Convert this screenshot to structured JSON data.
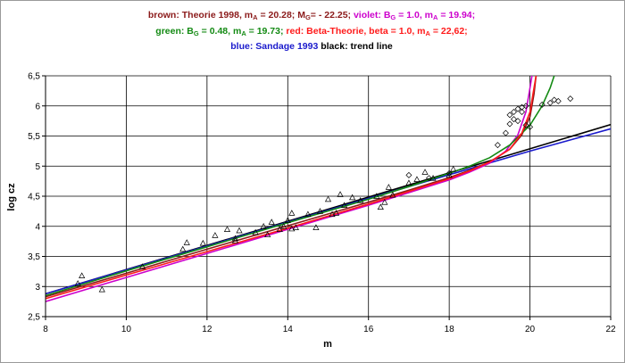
{
  "legend": {
    "brown_prefix": "brown",
    "brown_text": ": Theorie 1998, m",
    "brown_sub1": "A",
    "brown_mid": " = 20.28; M",
    "brown_sub2": "G",
    "brown_end": "= - 22.25;",
    "violet_prefix": "violet",
    "violet_text": ": B",
    "violet_sub1": "G",
    "violet_mid": " = 1.0, m",
    "violet_sub2": "A",
    "violet_end": " = 19.94;",
    "green_prefix": "green",
    "green_text": ": B",
    "green_sub1": "G",
    "green_mid": " = 0.48, m",
    "green_sub2": "A",
    "green_end": " = 19.73;",
    "red_prefix": "red",
    "red_text": ": Beta-Theorie, beta = 1.0, m",
    "red_sub": "A",
    "red_end": " = 22,62;",
    "blue_prefix": "blue",
    "blue_text": ": Sandage 1993",
    "black_prefix": "black",
    "black_text": ": trend line"
  },
  "colors": {
    "brown": "#8b1a1a",
    "violet": "#cc00cc",
    "green": "#138a13",
    "red": "#ff1a1a",
    "blue": "#1a1acc",
    "black": "#000000"
  },
  "chart_data": {
    "type": "scatter",
    "xlabel": "m",
    "ylabel": "log cz",
    "xlim": [
      8,
      22
    ],
    "ylim": [
      2.5,
      6.5
    ],
    "x_ticks": [
      8,
      10,
      12,
      14,
      16,
      18,
      20,
      22
    ],
    "y_ticks": [
      2.5,
      3,
      3.5,
      4,
      4.5,
      5,
      5.5,
      6,
      6.5
    ],
    "x_tick_labels": [
      "8",
      "10",
      "12",
      "14",
      "16",
      "18",
      "20",
      "22"
    ],
    "y_tick_labels": [
      "2,5",
      "3",
      "3,5",
      "4",
      "4,5",
      "5",
      "5,5",
      "6",
      "6,5"
    ],
    "grid": true,
    "series": [
      {
        "name": "black",
        "style": "line",
        "color": "black",
        "points": [
          [
            8,
            2.88
          ],
          [
            22,
            5.69
          ]
        ]
      },
      {
        "name": "blue",
        "style": "line",
        "color": "blue",
        "points": [
          [
            8,
            2.88
          ],
          [
            14,
            4.07
          ],
          [
            17,
            4.66
          ],
          [
            20,
            5.25
          ],
          [
            22,
            5.62
          ]
        ]
      },
      {
        "name": "brown",
        "style": "line",
        "color": "brown",
        "points": [
          [
            8,
            2.83
          ],
          [
            10,
            3.22
          ],
          [
            12,
            3.62
          ],
          [
            14,
            4.01
          ],
          [
            16,
            4.4
          ],
          [
            17,
            4.6
          ],
          [
            18,
            4.81
          ],
          [
            18.5,
            4.93
          ],
          [
            19,
            5.07
          ],
          [
            19.5,
            5.28
          ],
          [
            19.8,
            5.52
          ],
          [
            20.0,
            5.82
          ],
          [
            20.1,
            6.2
          ],
          [
            20.15,
            6.5
          ]
        ]
      },
      {
        "name": "violet",
        "style": "line",
        "color": "violet",
        "points": [
          [
            8,
            2.75
          ],
          [
            10,
            3.15
          ],
          [
            12,
            3.55
          ],
          [
            14,
            3.95
          ],
          [
            16,
            4.35
          ],
          [
            17,
            4.56
          ],
          [
            18,
            4.77
          ],
          [
            18.5,
            4.9
          ],
          [
            19,
            5.05
          ],
          [
            19.4,
            5.25
          ],
          [
            19.7,
            5.52
          ],
          [
            19.9,
            5.9
          ],
          [
            20.0,
            6.3
          ],
          [
            20.05,
            6.5
          ]
        ]
      },
      {
        "name": "green",
        "style": "line",
        "color": "green",
        "points": [
          [
            8,
            2.85
          ],
          [
            10,
            3.26
          ],
          [
            12,
            3.66
          ],
          [
            14,
            4.06
          ],
          [
            16,
            4.45
          ],
          [
            17,
            4.66
          ],
          [
            18,
            4.88
          ],
          [
            18.5,
            5.0
          ],
          [
            19,
            5.14
          ],
          [
            19.5,
            5.35
          ],
          [
            20,
            5.68
          ],
          [
            20.3,
            6.0
          ],
          [
            20.5,
            6.3
          ],
          [
            20.6,
            6.5
          ]
        ]
      },
      {
        "name": "red",
        "style": "line",
        "color": "red",
        "points": [
          [
            8,
            2.8
          ],
          [
            10,
            3.19
          ],
          [
            12,
            3.58
          ],
          [
            14,
            3.97
          ],
          [
            16,
            4.37
          ],
          [
            17,
            4.58
          ],
          [
            18,
            4.79
          ],
          [
            18.5,
            4.92
          ],
          [
            19,
            5.07
          ],
          [
            19.5,
            5.28
          ],
          [
            19.8,
            5.55
          ],
          [
            20.0,
            5.9
          ],
          [
            20.1,
            6.3
          ],
          [
            20.15,
            6.5
          ]
        ]
      },
      {
        "name": "triangles",
        "style": "triangle",
        "color": "black",
        "points": [
          [
            8.9,
            3.18
          ],
          [
            8.8,
            3.05
          ],
          [
            9.4,
            2.95
          ],
          [
            10.4,
            3.33
          ],
          [
            11.5,
            3.73
          ],
          [
            11.4,
            3.62
          ],
          [
            11.9,
            3.72
          ],
          [
            12.2,
            3.85
          ],
          [
            12.5,
            3.95
          ],
          [
            12.7,
            3.76
          ],
          [
            12.7,
            3.8
          ],
          [
            12.8,
            3.93
          ],
          [
            13.2,
            3.9
          ],
          [
            13.4,
            4.0
          ],
          [
            13.5,
            3.86
          ],
          [
            13.6,
            4.07
          ],
          [
            13.8,
            3.95
          ],
          [
            13.9,
            4.0
          ],
          [
            14.0,
            4.1
          ],
          [
            14.1,
            4.22
          ],
          [
            14.1,
            3.96
          ],
          [
            14.2,
            3.98
          ],
          [
            14.5,
            4.2
          ],
          [
            14.7,
            3.98
          ],
          [
            14.8,
            4.25
          ],
          [
            15.0,
            4.45
          ],
          [
            15.1,
            4.2
          ],
          [
            15.2,
            4.22
          ],
          [
            15.3,
            4.53
          ],
          [
            15.4,
            4.35
          ],
          [
            15.6,
            4.48
          ],
          [
            15.8,
            4.43
          ],
          [
            16.2,
            4.5
          ],
          [
            16.3,
            4.32
          ],
          [
            16.4,
            4.4
          ],
          [
            16.5,
            4.65
          ],
          [
            16.6,
            4.52
          ],
          [
            17.0,
            4.72
          ],
          [
            17.2,
            4.78
          ],
          [
            17.4,
            4.9
          ],
          [
            17.6,
            4.8
          ],
          [
            18.0,
            4.85
          ],
          [
            18.1,
            4.95
          ]
        ]
      },
      {
        "name": "diamonds",
        "style": "diamond",
        "color": "black",
        "points": [
          [
            17.0,
            4.85
          ],
          [
            17.5,
            4.8
          ],
          [
            18.0,
            4.88
          ],
          [
            19.2,
            5.35
          ],
          [
            19.4,
            5.55
          ],
          [
            19.5,
            5.7
          ],
          [
            19.5,
            5.85
          ],
          [
            19.6,
            5.9
          ],
          [
            19.6,
            5.78
          ],
          [
            19.7,
            5.95
          ],
          [
            19.7,
            5.75
          ],
          [
            19.8,
            5.9
          ],
          [
            19.8,
            5.98
          ],
          [
            19.9,
            6.0
          ],
          [
            19.9,
            5.68
          ],
          [
            20.0,
            5.65
          ],
          [
            20.3,
            6.02
          ],
          [
            20.5,
            6.05
          ],
          [
            20.6,
            6.1
          ],
          [
            20.7,
            6.08
          ],
          [
            21.0,
            6.12
          ]
        ]
      }
    ]
  }
}
